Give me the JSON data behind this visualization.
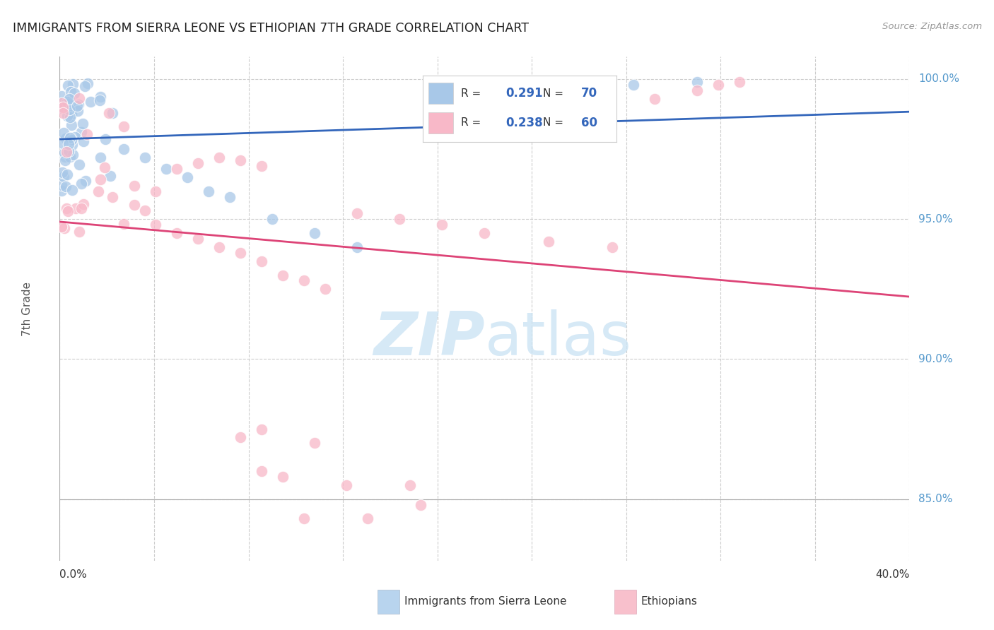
{
  "title": "IMMIGRANTS FROM SIERRA LEONE VS ETHIOPIAN 7TH GRADE CORRELATION CHART",
  "source": "Source: ZipAtlas.com",
  "ylabel": "7th Grade",
  "xmin": 0.0,
  "xmax": 0.4,
  "ymin": 0.828,
  "ymax": 1.008,
  "ytick_vals": [
    1.0,
    0.95,
    0.9,
    0.85
  ],
  "ytick_labels": [
    "100.0%",
    "95.0%",
    "90.0%",
    "85.0%"
  ],
  "blue_color": "#a8c8e8",
  "blue_edge": "#6699cc",
  "pink_color": "#f8b8c8",
  "pink_edge": "#ee8899",
  "blue_line_color": "#3366bb",
  "pink_line_color": "#dd4477",
  "grid_color": "#cccccc",
  "right_tick_color": "#5599cc",
  "watermark_color": "#cce4f4",
  "blue_R": 0.291,
  "blue_N": 70,
  "pink_R": 0.238,
  "pink_N": 60,
  "legend_label_color": "#333333",
  "legend_val_color": "#3366bb",
  "bottom_legend_blue_color": "#b8d4ee",
  "bottom_legend_pink_color": "#f8c0cc"
}
